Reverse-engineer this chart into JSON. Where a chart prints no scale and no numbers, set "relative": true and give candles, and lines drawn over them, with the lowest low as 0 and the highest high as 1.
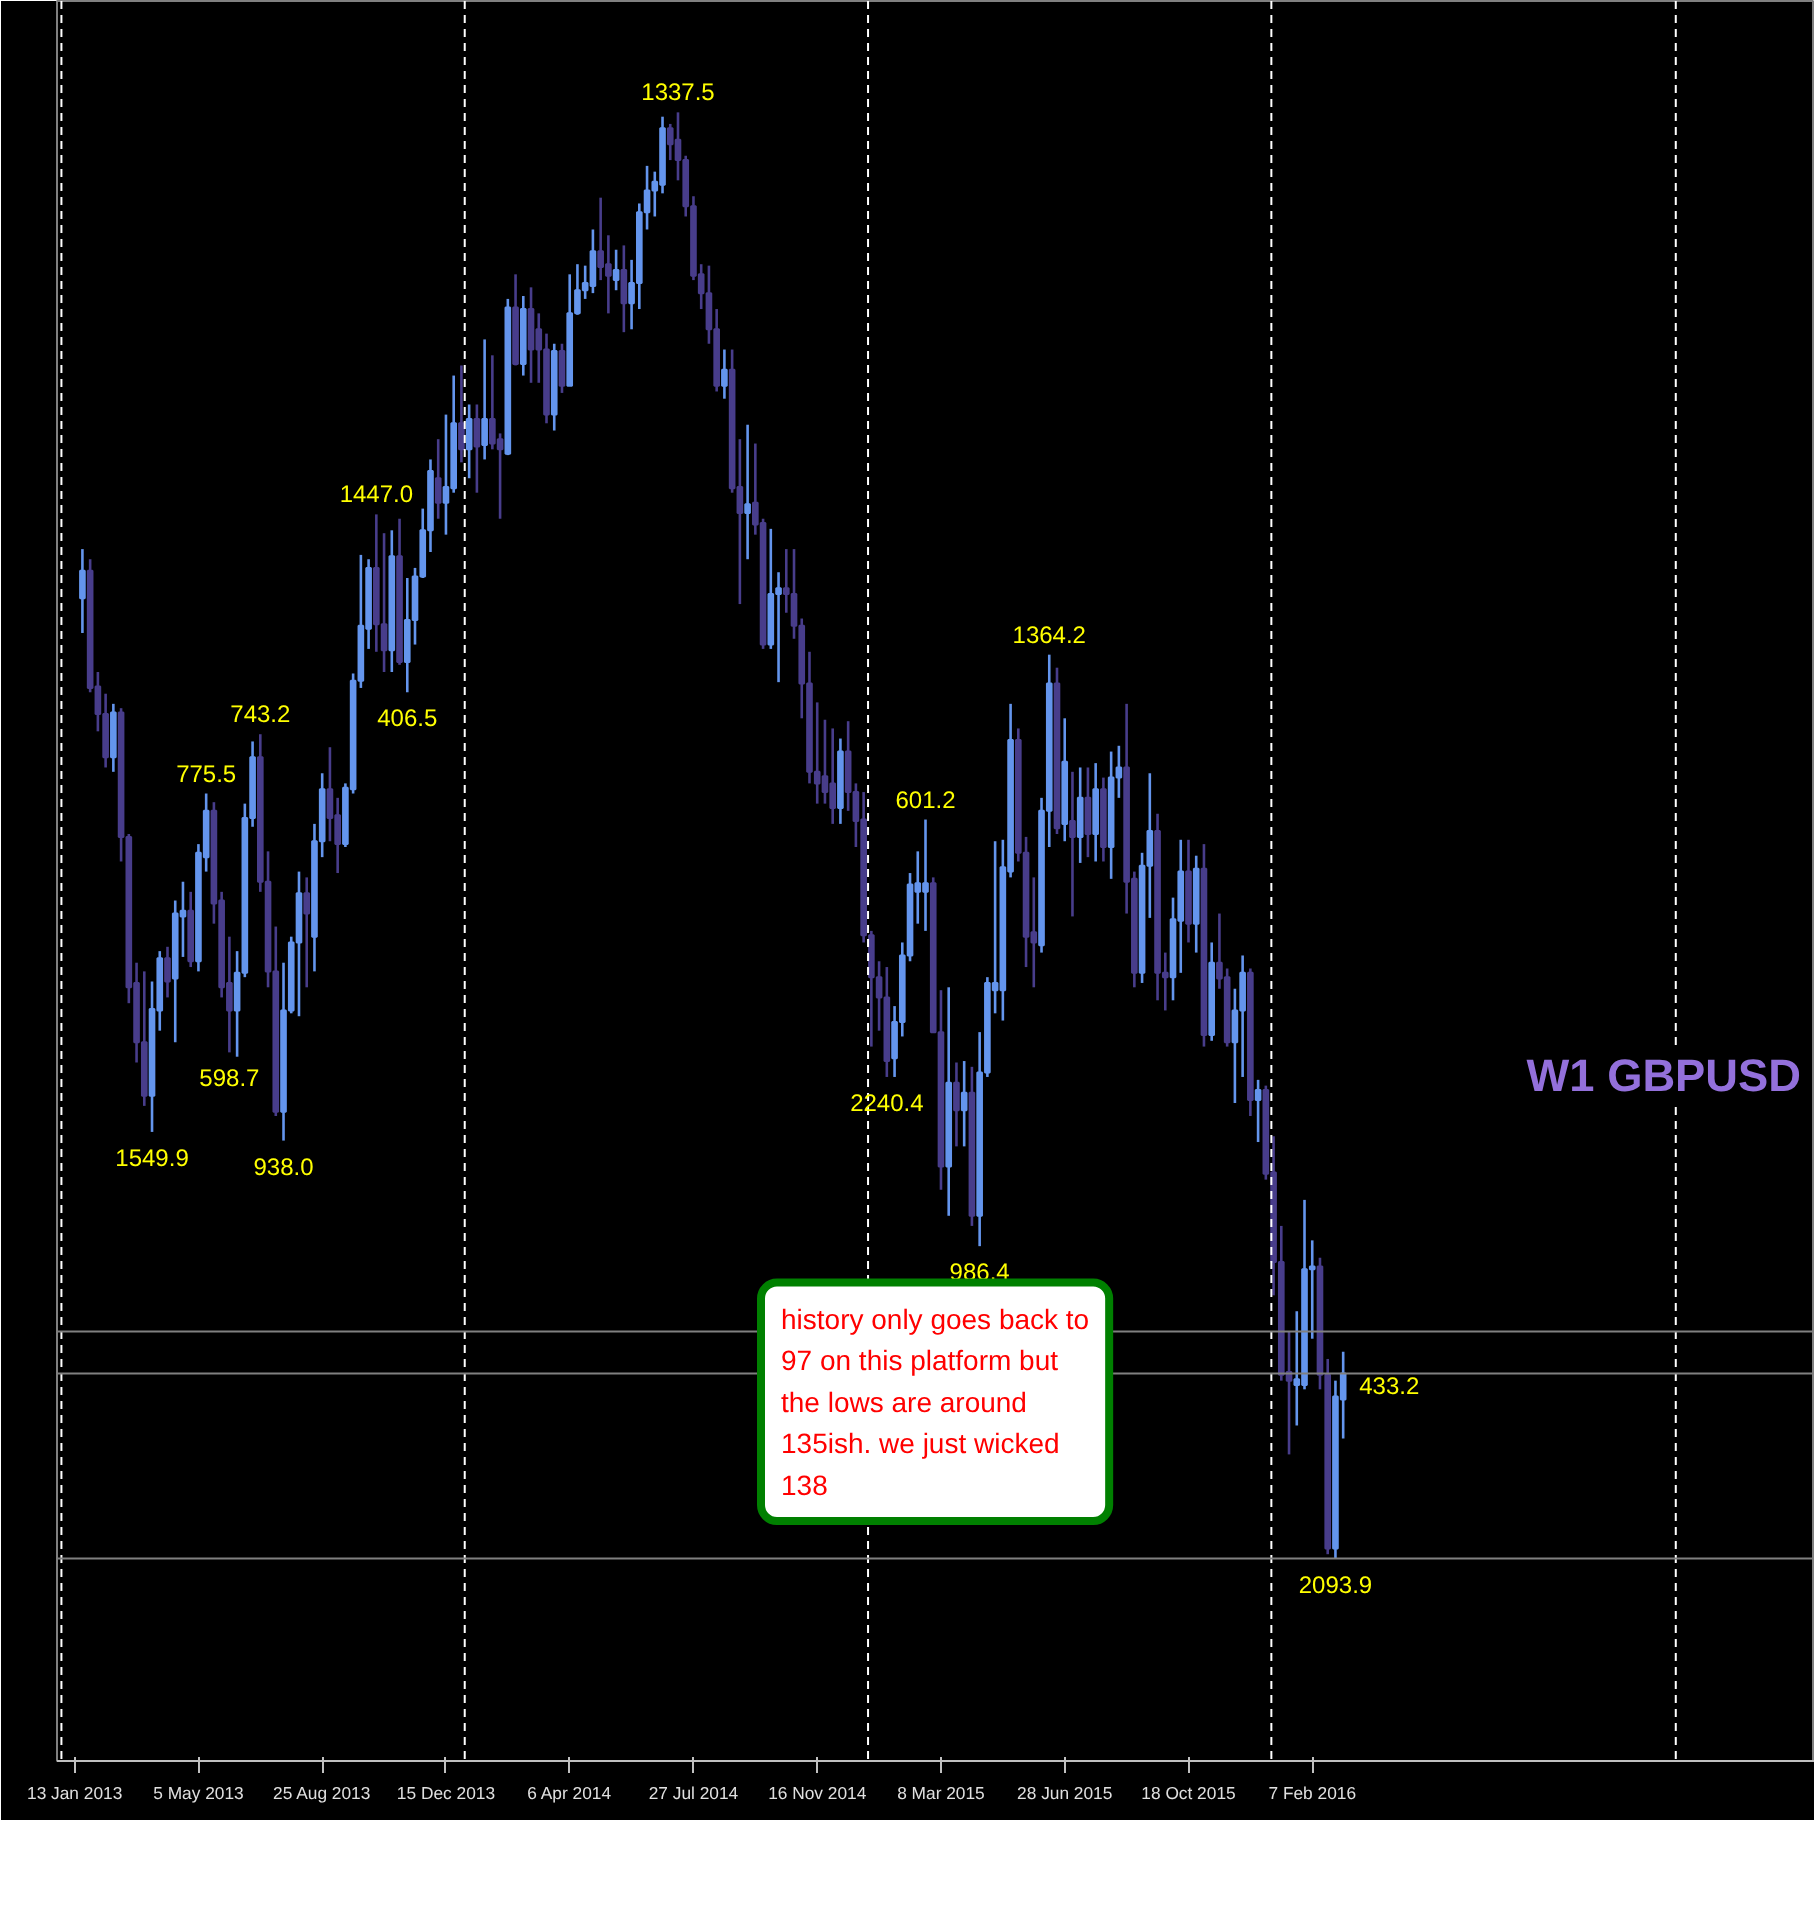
{
  "chart_data": {
    "type": "candlestick",
    "title": "W1 GBPUSD",
    "relative": true,
    "colors": [
      "#6495ed",
      "#483d8b",
      "#483d8b",
      "#483d8b",
      "#6495ed",
      "#483d8b",
      "#483d8b",
      "#483d8b",
      "#483d8b",
      "#6495ed",
      "#6495ed",
      "#483d8b",
      "#6495ed",
      "#6495ed",
      "#483d8b",
      "#6495ed",
      "#6495ed",
      "#483d8b",
      "#483d8b",
      "#483d8b",
      "#6495ed",
      "#6495ed",
      "#6495ed",
      "#483d8b",
      "#483d8b",
      "#483d8b",
      "#6495ed",
      "#6495ed",
      "#6495ed",
      "#483d8b",
      "#6495ed",
      "#6495ed",
      "#483d8b",
      "#483d8b",
      "#6495ed",
      "#6495ed",
      "#6495ed",
      "#6495ed",
      "#483d8b",
      "#483d8b",
      "#6495ed",
      "#483d8b",
      "#6495ed",
      "#6495ed",
      "#6495ed",
      "#6495ed",
      "#483d8b",
      "#6495ed",
      "#6495ed",
      "#483d8b",
      "#6495ed",
      "#483d8b",
      "#6495ed",
      "#483d8b",
      "#483d8b",
      "#6495ed",
      "#483d8b",
      "#6495ed",
      "#483d8b",
      "#483d8b",
      "#483d8b",
      "#6495ed",
      "#483d8b",
      "#6495ed",
      "#6495ed",
      "#6495ed",
      "#6495ed",
      "#483d8b",
      "#483d8b",
      "#6495ed",
      "#483d8b",
      "#6495ed",
      "#6495ed",
      "#6495ed",
      "#6495ed",
      "#6495ed",
      "#483d8b",
      "#483d8b",
      "#483d8b",
      "#483d8b",
      "#483d8b",
      "#483d8b",
      "#483d8b",
      "#6495ed",
      "#483d8b",
      "#483d8b",
      "#6495ed",
      "#483d8b",
      "#483d8b",
      "#6495ed",
      "#6495ed",
      "#483d8b",
      "#483d8b",
      "#483d8b",
      "#483d8b",
      "#483d8b",
      "#483d8b",
      "#483d8b",
      "#6495ed",
      "#483d8b",
      "#483d8b",
      "#483d8b",
      "#483d8b",
      "#483d8b",
      "#483d8b",
      "#6495ed",
      "#6495ed",
      "#6495ed",
      "#6495ed",
      "#6495ed",
      "#483d8b",
      "#483d8b",
      "#6495ed",
      "#483d8b",
      "#6495ed",
      "#483d8b",
      "#6495ed",
      "#6495ed",
      "#6495ed",
      "#6495ed",
      "#6495ed",
      "#483d8b",
      "#483d8b",
      "#483d8b",
      "#6495ed",
      "#6495ed",
      "#483d8b",
      "#6495ed",
      "#483d8b",
      "#6495ed",
      "#483d8b",
      "#6495ed",
      "#483d8b",
      "#6495ed",
      "#6495ed",
      "#483d8b",
      "#483d8b",
      "#6495ed",
      "#6495ed",
      "#483d8b",
      "#483d8b",
      "#6495ed",
      "#6495ed",
      "#483d8b",
      "#6495ed",
      "#483d8b",
      "#6495ed",
      "#483d8b",
      "#483d8b",
      "#6495ed",
      "#6495ed",
      "#483d8b",
      "#6495ed",
      "#483d8b",
      "#483d8b",
      "#483d8b",
      "#483d8b",
      "#6495ed",
      "#6495ed",
      "#6495ed",
      "#483d8b",
      "#483d8b",
      "#6495ed",
      "#6495ed"
    ],
    "x": [
      "2013-01-20",
      "2013-01-27",
      "2013-02-03",
      "2013-02-10",
      "2013-02-17",
      "2013-02-24",
      "2013-03-03",
      "2013-03-10",
      "2013-03-17",
      "2013-03-24",
      "2013-03-31",
      "2013-04-07",
      "2013-04-14",
      "2013-04-21",
      "2013-04-28",
      "2013-05-05",
      "2013-05-12",
      "2013-05-19",
      "2013-05-26",
      "2013-06-02",
      "2013-06-09",
      "2013-06-16",
      "2013-06-23",
      "2013-06-30",
      "2013-07-07",
      "2013-07-14",
      "2013-07-21",
      "2013-07-28",
      "2013-08-04",
      "2013-08-11",
      "2013-08-18",
      "2013-08-25",
      "2013-09-01",
      "2013-09-08",
      "2013-09-15",
      "2013-09-22",
      "2013-09-29",
      "2013-10-06",
      "2013-10-13",
      "2013-10-20",
      "2013-10-27",
      "2013-11-03",
      "2013-11-10",
      "2013-11-17",
      "2013-11-24",
      "2013-12-01",
      "2013-12-08",
      "2013-12-15",
      "2013-12-22",
      "2013-12-29",
      "2014-01-05",
      "2014-01-12",
      "2014-01-19",
      "2014-01-26",
      "2014-02-02",
      "2014-02-09",
      "2014-02-16",
      "2014-02-23",
      "2014-03-02",
      "2014-03-09",
      "2014-03-16",
      "2014-03-23",
      "2014-03-30",
      "2014-04-06",
      "2014-04-13",
      "2014-04-20",
      "2014-04-27",
      "2014-05-04",
      "2014-05-11",
      "2014-05-18",
      "2014-05-25",
      "2014-06-01",
      "2014-06-08",
      "2014-06-15",
      "2014-06-22",
      "2014-06-29",
      "2014-07-06",
      "2014-07-13",
      "2014-07-20",
      "2014-07-27",
      "2014-08-03",
      "2014-08-10",
      "2014-08-17",
      "2014-08-24",
      "2014-08-31",
      "2014-09-07",
      "2014-09-14",
      "2014-09-21",
      "2014-09-28",
      "2014-10-05",
      "2014-10-12",
      "2014-10-19",
      "2014-10-26",
      "2014-11-02",
      "2014-11-09",
      "2014-11-16",
      "2014-11-23",
      "2014-11-30",
      "2014-12-07",
      "2014-12-14",
      "2014-12-21",
      "2014-12-28",
      "2015-01-04",
      "2015-01-11",
      "2015-01-18",
      "2015-01-25",
      "2015-02-01",
      "2015-02-08",
      "2015-02-15",
      "2015-02-22",
      "2015-03-01",
      "2015-03-08",
      "2015-03-15",
      "2015-03-22",
      "2015-03-29",
      "2015-04-05",
      "2015-04-12",
      "2015-04-19",
      "2015-04-26",
      "2015-05-03",
      "2015-05-10",
      "2015-05-17",
      "2015-05-24",
      "2015-05-31",
      "2015-06-07",
      "2015-06-14",
      "2015-06-21",
      "2015-06-28",
      "2015-07-05",
      "2015-07-12",
      "2015-07-19",
      "2015-07-26",
      "2015-08-02",
      "2015-08-09",
      "2015-08-16",
      "2015-08-23",
      "2015-08-30",
      "2015-09-06",
      "2015-09-13",
      "2015-09-20",
      "2015-09-27",
      "2015-10-04",
      "2015-10-11",
      "2015-10-18",
      "2015-10-25",
      "2015-11-01",
      "2015-11-08",
      "2015-11-15",
      "2015-11-22",
      "2015-11-29",
      "2015-12-06",
      "2015-12-13",
      "2015-12-20",
      "2015-12-27",
      "2016-01-03",
      "2016-01-10",
      "2016-01-17",
      "2016-01-24",
      "2016-01-31",
      "2016-02-07",
      "2016-02-14",
      "2016-02-21",
      "2016-02-28",
      "2016-03-06"
    ],
    "ohlc": [
      [
        0.664,
        0.698,
        0.64,
        0.683
      ],
      [
        0.683,
        0.691,
        0.599,
        0.602
      ],
      [
        0.603,
        0.613,
        0.572,
        0.584
      ],
      [
        0.584,
        0.598,
        0.547,
        0.554
      ],
      [
        0.554,
        0.591,
        0.544,
        0.585
      ],
      [
        0.585,
        0.588,
        0.482,
        0.499
      ],
      [
        0.499,
        0.501,
        0.384,
        0.395
      ],
      [
        0.398,
        0.412,
        0.343,
        0.357
      ],
      [
        0.357,
        0.406,
        0.313,
        0.32
      ],
      [
        0.32,
        0.399,
        0.295,
        0.38
      ],
      [
        0.379,
        0.42,
        0.365,
        0.415
      ],
      [
        0.415,
        0.423,
        0.388,
        0.399
      ],
      [
        0.401,
        0.455,
        0.357,
        0.446
      ],
      [
        0.444,
        0.468,
        0.416,
        0.448
      ],
      [
        0.448,
        0.461,
        0.409,
        0.413
      ],
      [
        0.413,
        0.494,
        0.406,
        0.488
      ],
      [
        0.485,
        0.529,
        0.475,
        0.517
      ],
      [
        0.517,
        0.523,
        0.439,
        0.453
      ],
      [
        0.455,
        0.461,
        0.388,
        0.395
      ],
      [
        0.398,
        0.43,
        0.35,
        0.379
      ],
      [
        0.379,
        0.42,
        0.347,
        0.405
      ],
      [
        0.405,
        0.522,
        0.402,
        0.512
      ],
      [
        0.512,
        0.565,
        0.506,
        0.554
      ],
      [
        0.554,
        0.57,
        0.461,
        0.468
      ],
      [
        0.468,
        0.489,
        0.395,
        0.406
      ],
      [
        0.406,
        0.437,
        0.306,
        0.309
      ],
      [
        0.309,
        0.412,
        0.289,
        0.379
      ],
      [
        0.379,
        0.43,
        0.377,
        0.426
      ],
      [
        0.426,
        0.475,
        0.375,
        0.46
      ],
      [
        0.46,
        0.471,
        0.395,
        0.446
      ],
      [
        0.43,
        0.508,
        0.406,
        0.496
      ],
      [
        0.496,
        0.543,
        0.485,
        0.532
      ],
      [
        0.532,
        0.561,
        0.496,
        0.512
      ],
      [
        0.514,
        0.526,
        0.474,
        0.494
      ],
      [
        0.494,
        0.536,
        0.492,
        0.533
      ],
      [
        0.532,
        0.612,
        0.529,
        0.607
      ],
      [
        0.607,
        0.694,
        0.602,
        0.645
      ],
      [
        0.643,
        0.691,
        0.629,
        0.685
      ],
      [
        0.685,
        0.722,
        0.627,
        0.646
      ],
      [
        0.646,
        0.709,
        0.613,
        0.628
      ],
      [
        0.628,
        0.711,
        0.613,
        0.693
      ],
      [
        0.693,
        0.719,
        0.618,
        0.62
      ],
      [
        0.62,
        0.678,
        0.599,
        0.649
      ],
      [
        0.649,
        0.685,
        0.632,
        0.679
      ],
      [
        0.679,
        0.726,
        0.678,
        0.711
      ],
      [
        0.711,
        0.76,
        0.696,
        0.752
      ],
      [
        0.747,
        0.774,
        0.719,
        0.73
      ],
      [
        0.73,
        0.791,
        0.708,
        0.741
      ],
      [
        0.74,
        0.818,
        0.737,
        0.785
      ],
      [
        0.785,
        0.825,
        0.758,
        0.767
      ],
      [
        0.767,
        0.798,
        0.747,
        0.788
      ],
      [
        0.788,
        0.798,
        0.737,
        0.769
      ],
      [
        0.77,
        0.843,
        0.76,
        0.788
      ],
      [
        0.788,
        0.832,
        0.767,
        0.771
      ],
      [
        0.774,
        0.778,
        0.719,
        0.767
      ],
      [
        0.764,
        0.871,
        0.763,
        0.865
      ],
      [
        0.865,
        0.888,
        0.825,
        0.826
      ],
      [
        0.826,
        0.873,
        0.818,
        0.864
      ],
      [
        0.864,
        0.879,
        0.813,
        0.836
      ],
      [
        0.85,
        0.861,
        0.813,
        0.836
      ],
      [
        0.836,
        0.847,
        0.785,
        0.791
      ],
      [
        0.791,
        0.84,
        0.78,
        0.835
      ],
      [
        0.835,
        0.84,
        0.806,
        0.811
      ],
      [
        0.811,
        0.888,
        0.811,
        0.861
      ],
      [
        0.861,
        0.895,
        0.86,
        0.877
      ],
      [
        0.877,
        0.894,
        0.871,
        0.882
      ],
      [
        0.88,
        0.919,
        0.875,
        0.904
      ],
      [
        0.904,
        0.941,
        0.884,
        0.893
      ],
      [
        0.895,
        0.915,
        0.861,
        0.887
      ],
      [
        0.884,
        0.905,
        0.877,
        0.891
      ],
      [
        0.891,
        0.908,
        0.848,
        0.868
      ],
      [
        0.868,
        0.898,
        0.85,
        0.882
      ],
      [
        0.882,
        0.937,
        0.864,
        0.931
      ],
      [
        0.931,
        0.963,
        0.919,
        0.946
      ],
      [
        0.946,
        0.959,
        0.928,
        0.952
      ],
      [
        0.95,
        0.997,
        0.944,
        0.989
      ],
      [
        0.989,
        0.992,
        0.967,
        0.978
      ],
      [
        0.981,
        1.0,
        0.953,
        0.967
      ],
      [
        0.967,
        0.97,
        0.928,
        0.935
      ],
      [
        0.935,
        0.942,
        0.884,
        0.887
      ],
      [
        0.888,
        0.895,
        0.864,
        0.875
      ],
      [
        0.875,
        0.894,
        0.84,
        0.85
      ],
      [
        0.85,
        0.864,
        0.807,
        0.811
      ],
      [
        0.811,
        0.836,
        0.802,
        0.822
      ],
      [
        0.822,
        0.836,
        0.737,
        0.74
      ],
      [
        0.741,
        0.774,
        0.66,
        0.723
      ],
      [
        0.723,
        0.784,
        0.691,
        0.729
      ],
      [
        0.73,
        0.771,
        0.708,
        0.715
      ],
      [
        0.716,
        0.719,
        0.629,
        0.632
      ],
      [
        0.632,
        0.712,
        0.629,
        0.667
      ],
      [
        0.667,
        0.682,
        0.606,
        0.671
      ],
      [
        0.671,
        0.698,
        0.654,
        0.667
      ],
      [
        0.667,
        0.698,
        0.636,
        0.645
      ],
      [
        0.645,
        0.65,
        0.581,
        0.605
      ],
      [
        0.605,
        0.627,
        0.536,
        0.544
      ],
      [
        0.544,
        0.592,
        0.522,
        0.536
      ],
      [
        0.541,
        0.58,
        0.522,
        0.53
      ],
      [
        0.536,
        0.574,
        0.508,
        0.519
      ],
      [
        0.519,
        0.567,
        0.508,
        0.558
      ],
      [
        0.558,
        0.579,
        0.517,
        0.53
      ],
      [
        0.53,
        0.536,
        0.492,
        0.51
      ],
      [
        0.511,
        0.53,
        0.426,
        0.431
      ],
      [
        0.431,
        0.434,
        0.354,
        0.402
      ],
      [
        0.402,
        0.413,
        0.365,
        0.388
      ],
      [
        0.388,
        0.409,
        0.333,
        0.344
      ],
      [
        0.346,
        0.382,
        0.333,
        0.371
      ],
      [
        0.371,
        0.426,
        0.361,
        0.417
      ],
      [
        0.417,
        0.474,
        0.413,
        0.466
      ],
      [
        0.461,
        0.489,
        0.439,
        0.467
      ],
      [
        0.461,
        0.511,
        0.434,
        0.467
      ],
      [
        0.467,
        0.471,
        0.364,
        0.364
      ],
      [
        0.364,
        0.393,
        0.255,
        0.271
      ],
      [
        0.271,
        0.395,
        0.237,
        0.329
      ],
      [
        0.329,
        0.343,
        0.285,
        0.31
      ],
      [
        0.31,
        0.344,
        0.285,
        0.322
      ],
      [
        0.322,
        0.34,
        0.23,
        0.237
      ],
      [
        0.237,
        0.364,
        0.216,
        0.336
      ],
      [
        0.336,
        0.402,
        0.333,
        0.398
      ],
      [
        0.393,
        0.496,
        0.377,
        0.398
      ],
      [
        0.393,
        0.497,
        0.372,
        0.478
      ],
      [
        0.475,
        0.591,
        0.471,
        0.566
      ],
      [
        0.566,
        0.574,
        0.482,
        0.488
      ],
      [
        0.488,
        0.499,
        0.409,
        0.43
      ],
      [
        0.433,
        0.471,
        0.395,
        0.426
      ],
      [
        0.424,
        0.526,
        0.419,
        0.517
      ],
      [
        0.517,
        0.625,
        0.492,
        0.605
      ],
      [
        0.605,
        0.616,
        0.501,
        0.505
      ],
      [
        0.508,
        0.581,
        0.496,
        0.551
      ],
      [
        0.51,
        0.544,
        0.444,
        0.499
      ],
      [
        0.499,
        0.547,
        0.481,
        0.526
      ],
      [
        0.526,
        0.547,
        0.485,
        0.501
      ],
      [
        0.501,
        0.55,
        0.482,
        0.532
      ],
      [
        0.532,
        0.54,
        0.482,
        0.492
      ],
      [
        0.492,
        0.558,
        0.47,
        0.54
      ],
      [
        0.54,
        0.562,
        0.526,
        0.547
      ],
      [
        0.547,
        0.591,
        0.446,
        0.468
      ],
      [
        0.47,
        0.475,
        0.395,
        0.405
      ],
      [
        0.405,
        0.488,
        0.398,
        0.479
      ],
      [
        0.479,
        0.543,
        0.443,
        0.503
      ],
      [
        0.503,
        0.515,
        0.386,
        0.405
      ],
      [
        0.405,
        0.419,
        0.379,
        0.402
      ],
      [
        0.402,
        0.457,
        0.386,
        0.442
      ],
      [
        0.441,
        0.497,
        0.405,
        0.475
      ],
      [
        0.475,
        0.497,
        0.426,
        0.439
      ],
      [
        0.439,
        0.486,
        0.419,
        0.477
      ],
      [
        0.477,
        0.494,
        0.354,
        0.362
      ],
      [
        0.362,
        0.426,
        0.358,
        0.412
      ],
      [
        0.412,
        0.446,
        0.394,
        0.401
      ],
      [
        0.402,
        0.408,
        0.354,
        0.357
      ],
      [
        0.357,
        0.394,
        0.315,
        0.379
      ],
      [
        0.379,
        0.417,
        0.333,
        0.405
      ],
      [
        0.405,
        0.408,
        0.306,
        0.317
      ],
      [
        0.317,
        0.331,
        0.288,
        0.324
      ],
      [
        0.324,
        0.327,
        0.262,
        0.266
      ],
      [
        0.267,
        0.292,
        0.182,
        0.205
      ],
      [
        0.205,
        0.23,
        0.123,
        0.127
      ],
      [
        0.129,
        0.157,
        0.072,
        0.123
      ],
      [
        0.12,
        0.171,
        0.092,
        0.124
      ],
      [
        0.12,
        0.248,
        0.117,
        0.2
      ],
      [
        0.2,
        0.22,
        0.152,
        0.202
      ],
      [
        0.202,
        0.208,
        0.117,
        0.127
      ],
      [
        0.127,
        0.138,
        0.003,
        0.007
      ],
      [
        0.007,
        0.123,
        0.0,
        0.112
      ],
      [
        0.11,
        0.143,
        0.083,
        0.128
      ]
    ],
    "xlim": [
      "2012-12-28",
      "2017-05-07"
    ],
    "xticks": [
      {
        "value": "2013-01-13",
        "label": "13 Jan 2013"
      },
      {
        "value": "2013-05-05",
        "label": "5 May 2013"
      },
      {
        "value": "2013-08-25",
        "label": "25 Aug 2013"
      },
      {
        "value": "2013-12-15",
        "label": "15 Dec 2013"
      },
      {
        "value": "2014-04-06",
        "label": "6 Apr 2014"
      },
      {
        "value": "2014-07-27",
        "label": "27 Jul 2014"
      },
      {
        "value": "2014-11-16",
        "label": "16 Nov 2014"
      },
      {
        "value": "2015-03-08",
        "label": "8 Mar 2015"
      },
      {
        "value": "2015-06-28",
        "label": "28 Jun 2015"
      },
      {
        "value": "2015-10-18",
        "label": "18 Oct 2015"
      },
      {
        "value": "2016-02-07",
        "label": "7 Feb 2016"
      }
    ],
    "grid": false,
    "ref_lines": [
      {
        "axis": "x",
        "value": "2013-01-01",
        "color": "#ffffff",
        "line_style": "dashed"
      },
      {
        "axis": "x",
        "value": "2014-01-01",
        "color": "#ffffff",
        "line_style": "dashed"
      },
      {
        "axis": "x",
        "value": "2015-01-01",
        "color": "#ffffff",
        "line_style": "dashed"
      },
      {
        "axis": "x",
        "value": "2016-01-01",
        "color": "#ffffff",
        "line_style": "dashed"
      },
      {
        "axis": "x",
        "value": "2017-01-01",
        "color": "#ffffff",
        "line_style": "dashed"
      },
      {
        "axis": "y",
        "value": 0.157,
        "color": "#808080",
        "line_style": "solid"
      },
      {
        "axis": "y",
        "value": 0.128,
        "color": "#808080",
        "line_style": "solid"
      },
      {
        "axis": "y",
        "value": 0,
        "color": "#808080",
        "line_style": "solid"
      }
    ],
    "annotations": [
      {
        "text": "1549.9",
        "x": "2013-03-24",
        "y": 0.295
      },
      {
        "text": "598.7",
        "x": "2013-06-02",
        "y": 0.35
      },
      {
        "text": "775.5",
        "x": "2013-05-12",
        "y": 0.529
      },
      {
        "text": "743.2",
        "x": "2013-06-30",
        "y": 0.57
      },
      {
        "text": "938.0",
        "x": "2013-07-21",
        "y": 0.289
      },
      {
        "text": "1447.0",
        "x": "2013-10-13",
        "y": 0.722
      },
      {
        "text": "406.5",
        "x": "2013-11-10",
        "y": 0.599
      },
      {
        "text": "1337.5",
        "x": "2014-07-13",
        "y": 1.0
      },
      {
        "text": "601.2",
        "x": "2015-02-22",
        "y": 0.511
      },
      {
        "text": "2240.4",
        "x": "2015-01-18",
        "y": 0.333
      },
      {
        "text": "986.4",
        "x": "2015-04-12",
        "y": 0.216
      },
      {
        "text": "1364.2",
        "x": "2015-06-14",
        "y": 0.625
      },
      {
        "text": "2093.9",
        "x": "2016-02-28",
        "y": 0
      },
      {
        "text": "433.2",
        "x": "2016-03-06",
        "y": 0.12
      },
      "history only goes back to 97 on this platform but the lows are around 135ish.  we just wicked 138"
    ]
  }
}
